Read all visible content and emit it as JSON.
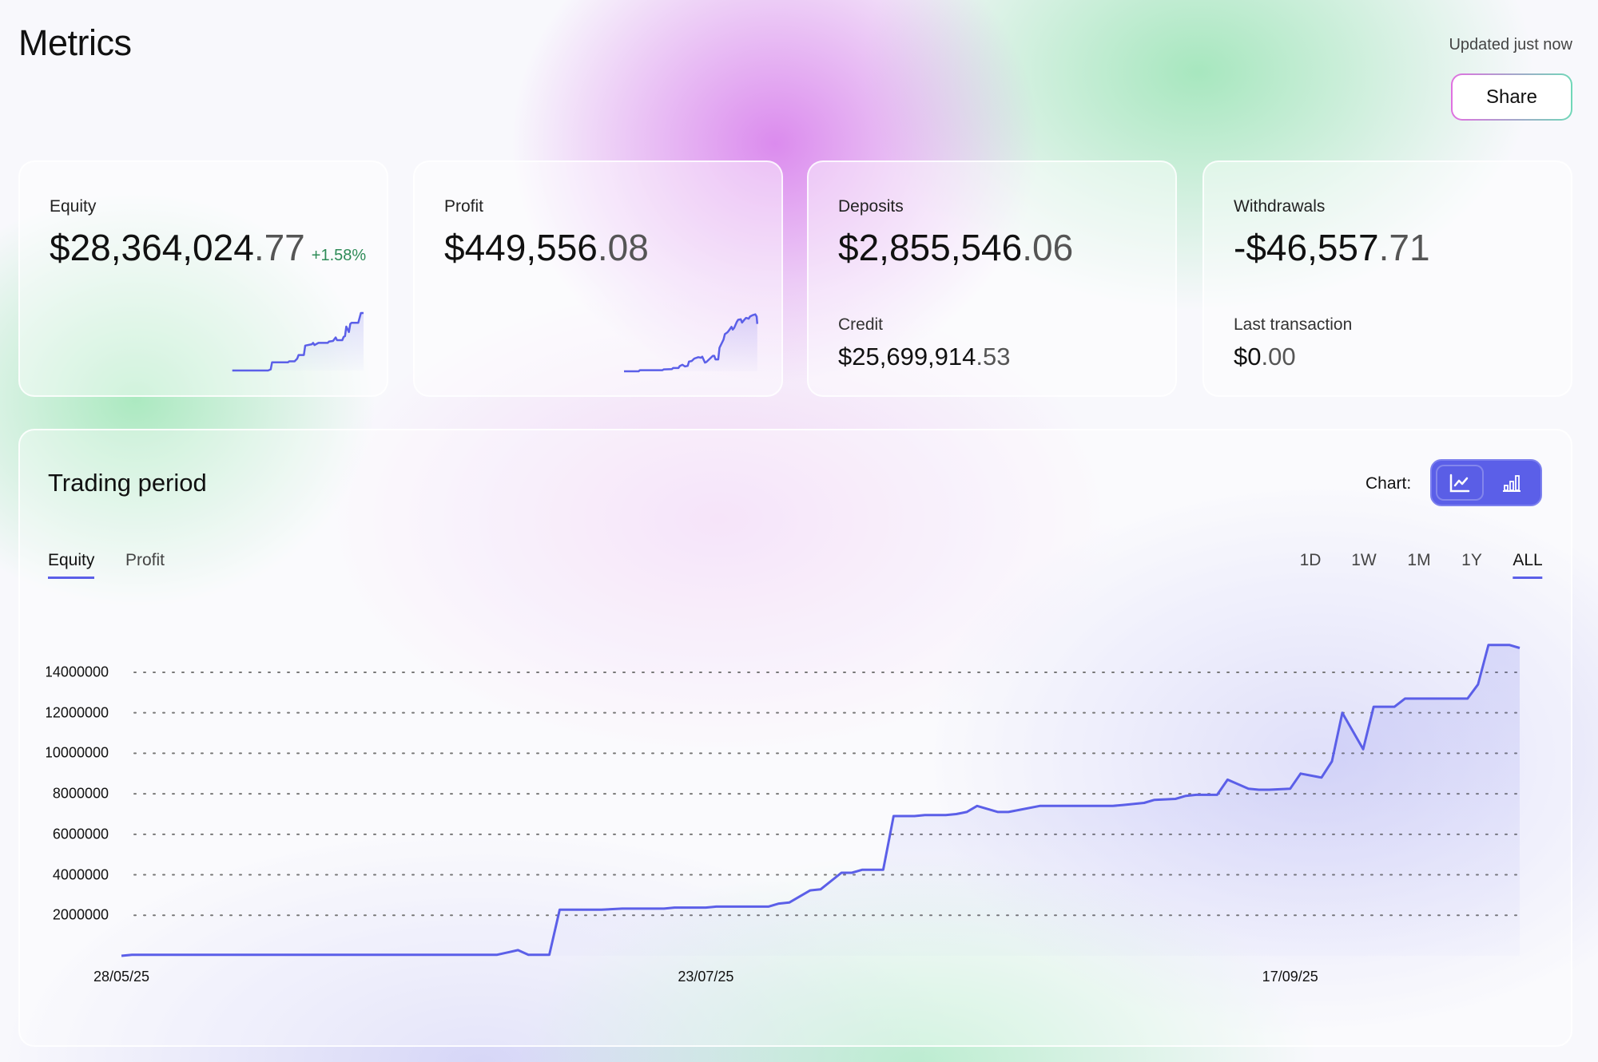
{
  "header": {
    "title": "Metrics",
    "updated": "Updated just now",
    "share_label": "Share"
  },
  "colors": {
    "accent": "#5b5fe8",
    "positive": "#2e8b57"
  },
  "cards": [
    {
      "label": "Equity",
      "value_main": "$28,364,024",
      "value_dec": ".77",
      "change": "+1.58%",
      "sparkline": [
        [
          1,
          0
        ],
        [
          28,
          0
        ],
        [
          30,
          4
        ],
        [
          31,
          30
        ],
        [
          43,
          30
        ],
        [
          44,
          34
        ],
        [
          48,
          34
        ],
        [
          50,
          44
        ],
        [
          51,
          57
        ],
        [
          55,
          57
        ],
        [
          56,
          92
        ],
        [
          61,
          97
        ],
        [
          62,
          102
        ],
        [
          63,
          94
        ],
        [
          66,
          102
        ],
        [
          73,
          102
        ],
        [
          74,
          107
        ],
        [
          77,
          109
        ],
        [
          79,
          122
        ],
        [
          80,
          112
        ],
        [
          84,
          112
        ],
        [
          85,
          124
        ],
        [
          86,
          127
        ],
        [
          87,
          162
        ],
        [
          89,
          142
        ],
        [
          90,
          172
        ],
        [
          91,
          176
        ],
        [
          96,
          176
        ],
        [
          98,
          212
        ],
        [
          100,
          212
        ]
      ]
    },
    {
      "label": "Profit",
      "value_main": "$449,556",
      "value_dec": ".08",
      "sparkline": [
        [
          0,
          0
        ],
        [
          11,
          0
        ],
        [
          12,
          4
        ],
        [
          29,
          4
        ],
        [
          30,
          7
        ],
        [
          36,
          8
        ],
        [
          37,
          12
        ],
        [
          41,
          12
        ],
        [
          42,
          19
        ],
        [
          44,
          24
        ],
        [
          46,
          18
        ],
        [
          48,
          20
        ],
        [
          49,
          36
        ],
        [
          51,
          38
        ],
        [
          53,
          47
        ],
        [
          56,
          52
        ],
        [
          58,
          50
        ],
        [
          59,
          54
        ],
        [
          61,
          32
        ],
        [
          62,
          34
        ],
        [
          67,
          57
        ],
        [
          68,
          57
        ],
        [
          69,
          44
        ],
        [
          71,
          44
        ],
        [
          72,
          87
        ],
        [
          73,
          97
        ],
        [
          75,
          117
        ],
        [
          76,
          137
        ],
        [
          78,
          144
        ],
        [
          79,
          150
        ],
        [
          81,
          164
        ],
        [
          82,
          154
        ],
        [
          83,
          160
        ],
        [
          85,
          182
        ],
        [
          86,
          190
        ],
        [
          88,
          192
        ],
        [
          89,
          180
        ],
        [
          91,
          192
        ],
        [
          92,
          197
        ],
        [
          94,
          194
        ],
        [
          95,
          202
        ],
        [
          97,
          207
        ],
        [
          99,
          210
        ],
        [
          100,
          202
        ],
        [
          100.5,
          175
        ]
      ]
    },
    {
      "label": "Deposits",
      "value_main": "$2,855,546",
      "value_dec": ".06",
      "sub_label": "Credit",
      "sub_main": "$25,699,914",
      "sub_dec": ".53"
    },
    {
      "label": "Withdrawals",
      "value_main": "-$46,557",
      "value_dec": ".71",
      "sub_label": "Last transaction",
      "sub_main": "$0",
      "sub_dec": ".00"
    }
  ],
  "panel": {
    "title": "Trading period",
    "chart_label": "Chart:",
    "chart_types": [
      {
        "icon": "line-chart-icon",
        "active": true
      },
      {
        "icon": "bar-chart-icon",
        "active": false
      }
    ],
    "tabs": [
      {
        "label": "Equity",
        "active": true
      },
      {
        "label": "Profit",
        "active": false
      }
    ],
    "ranges": [
      {
        "label": "1D"
      },
      {
        "label": "1W"
      },
      {
        "label": "1M"
      },
      {
        "label": "1Y"
      },
      {
        "label": "ALL",
        "active": true
      }
    ]
  },
  "chart_data": {
    "type": "line",
    "title": "",
    "xlabel": "",
    "ylabel": "",
    "x_ticks": [
      "28/05/25",
      "23/07/25",
      "17/09/25"
    ],
    "y_ticks": [
      2000000,
      4000000,
      6000000,
      8000000,
      10000000,
      12000000,
      14000000
    ],
    "xlim": [
      "2025-05-28",
      "2025-10-09"
    ],
    "ylim": [
      0,
      15500000
    ],
    "grid": "horizontal-dotted",
    "fill": "area-gradient",
    "series": [
      {
        "points": [
          [
            "2025-05-28",
            0
          ],
          [
            "2025-05-29",
            50000
          ],
          [
            "2025-07-03",
            50000
          ],
          [
            "2025-07-05",
            280000
          ],
          [
            "2025-07-06",
            50000
          ],
          [
            "2025-07-08",
            50000
          ],
          [
            "2025-07-09",
            2280000
          ],
          [
            "2025-07-13",
            2280000
          ],
          [
            "2025-07-15",
            2330000
          ],
          [
            "2025-07-19",
            2330000
          ],
          [
            "2025-07-20",
            2380000
          ],
          [
            "2025-07-23",
            2380000
          ],
          [
            "2025-07-24",
            2430000
          ],
          [
            "2025-07-29",
            2430000
          ],
          [
            "2025-07-30",
            2580000
          ],
          [
            "2025-07-31",
            2630000
          ],
          [
            "2025-08-02",
            3230000
          ],
          [
            "2025-08-03",
            3280000
          ],
          [
            "2025-08-05",
            4100000
          ],
          [
            "2025-08-06",
            4100000
          ],
          [
            "2025-08-07",
            4250000
          ],
          [
            "2025-08-09",
            4250000
          ],
          [
            "2025-08-10",
            6900000
          ],
          [
            "2025-08-12",
            6900000
          ],
          [
            "2025-08-13",
            6950000
          ],
          [
            "2025-08-15",
            6950000
          ],
          [
            "2025-08-16",
            7000000
          ],
          [
            "2025-08-17",
            7100000
          ],
          [
            "2025-08-18",
            7400000
          ],
          [
            "2025-08-20",
            7100000
          ],
          [
            "2025-08-21",
            7100000
          ],
          [
            "2025-08-22",
            7200000
          ],
          [
            "2025-08-24",
            7400000
          ],
          [
            "2025-08-31",
            7400000
          ],
          [
            "2025-09-01",
            7450000
          ],
          [
            "2025-09-03",
            7550000
          ],
          [
            "2025-09-04",
            7700000
          ],
          [
            "2025-09-06",
            7750000
          ],
          [
            "2025-09-07",
            7900000
          ],
          [
            "2025-09-08",
            7950000
          ],
          [
            "2025-09-10",
            7950000
          ],
          [
            "2025-09-11",
            8700000
          ],
          [
            "2025-09-13",
            8250000
          ],
          [
            "2025-09-14",
            8200000
          ],
          [
            "2025-09-15",
            8200000
          ],
          [
            "2025-09-17",
            8250000
          ],
          [
            "2025-09-18",
            9000000
          ],
          [
            "2025-09-20",
            8800000
          ],
          [
            "2025-09-21",
            9600000
          ],
          [
            "2025-09-22",
            12000000
          ],
          [
            "2025-09-24",
            10200000
          ],
          [
            "2025-09-25",
            12300000
          ],
          [
            "2025-09-27",
            12300000
          ],
          [
            "2025-09-28",
            12700000
          ],
          [
            "2025-09-29",
            12700000
          ],
          [
            "2025-10-04",
            12700000
          ],
          [
            "2025-10-05",
            13400000
          ],
          [
            "2025-10-06",
            15350000
          ],
          [
            "2025-10-08",
            15350000
          ],
          [
            "2025-10-09",
            15200000
          ]
        ]
      }
    ]
  }
}
